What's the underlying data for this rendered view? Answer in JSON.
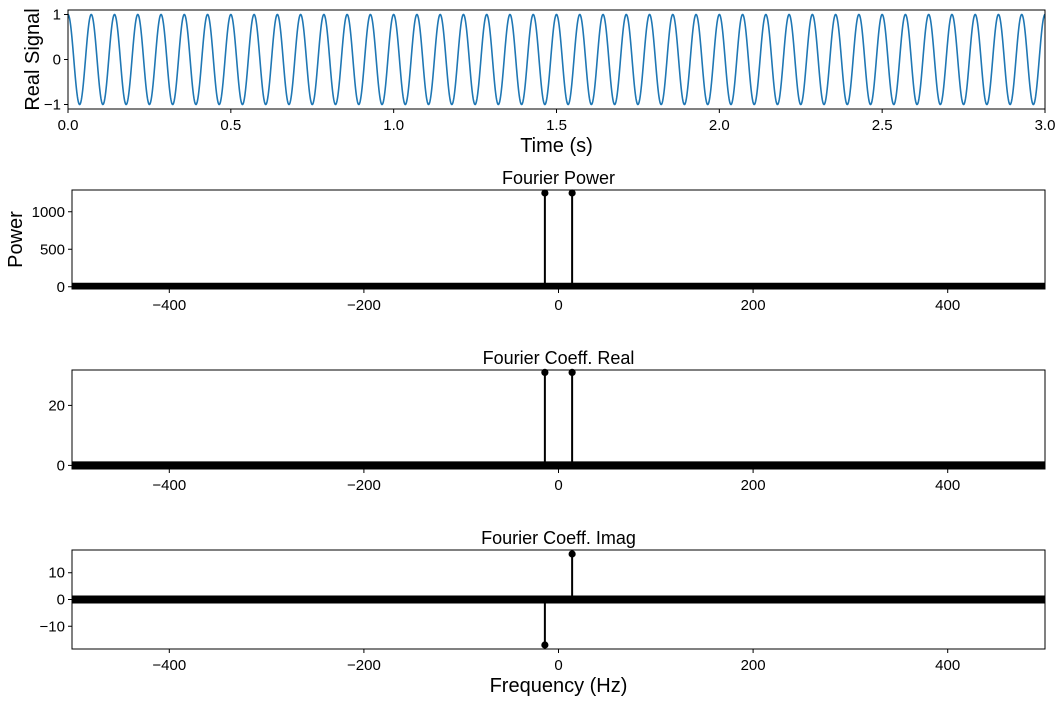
{
  "chart_data": [
    {
      "type": "line",
      "title": "",
      "xlabel": "Time (s)",
      "ylabel": "Real Signal",
      "xlim": [
        0,
        3
      ],
      "ylim": [
        -1.1,
        1.1
      ],
      "xticks": [
        "0.0",
        "0.5",
        "1.0",
        "1.5",
        "2.0",
        "2.5",
        "3.0"
      ],
      "xtick_values": [
        0,
        0.5,
        1.0,
        1.5,
        2.0,
        2.5,
        3.0
      ],
      "yticks": [
        "−1",
        "0",
        "1"
      ],
      "ytick_values": [
        -1,
        0,
        1
      ],
      "signal": {
        "function": "cos",
        "frequency_hz": 14,
        "amplitude": 1,
        "color": "#1f77b4"
      }
    },
    {
      "type": "stem",
      "title": "Fourier Power",
      "xlabel": "",
      "ylabel": "Power",
      "xlim": [
        -500,
        500
      ],
      "ylim": [
        -30,
        1290
      ],
      "xticks": [
        "−400",
        "−200",
        "0",
        "200",
        "400"
      ],
      "xtick_values": [
        -400,
        -200,
        0,
        200,
        400
      ],
      "yticks": [
        "0",
        "500",
        "1000"
      ],
      "ytick_values": [
        0,
        500,
        1000
      ],
      "x": [
        -14,
        14
      ],
      "values": [
        1250,
        1250
      ],
      "color": "#000000"
    },
    {
      "type": "stem",
      "title": "Fourier Coeff. Real",
      "xlabel": "",
      "ylabel": "",
      "xlim": [
        -500,
        500
      ],
      "ylim": [
        -1.2,
        31.8
      ],
      "xticks": [
        "−400",
        "−200",
        "0",
        "200",
        "400"
      ],
      "xtick_values": [
        -400,
        -200,
        0,
        200,
        400
      ],
      "yticks": [
        "0",
        "20"
      ],
      "ytick_values": [
        0,
        20
      ],
      "x": [
        -14,
        14
      ],
      "values": [
        31,
        31
      ],
      "color": "#000000"
    },
    {
      "type": "stem",
      "title": "Fourier Coeff. Imag",
      "xlabel": "Frequency (Hz)",
      "ylabel": "",
      "xlim": [
        -500,
        500
      ],
      "ylim": [
        -18.5,
        18.5
      ],
      "xticks": [
        "−400",
        "−200",
        "0",
        "200",
        "400"
      ],
      "xtick_values": [
        -400,
        -200,
        0,
        200,
        400
      ],
      "yticks": [
        "−10",
        "0",
        "10"
      ],
      "ytick_values": [
        -10,
        0,
        10
      ],
      "x": [
        -14,
        14
      ],
      "values": [
        -17,
        17
      ],
      "color": "#000000"
    }
  ]
}
